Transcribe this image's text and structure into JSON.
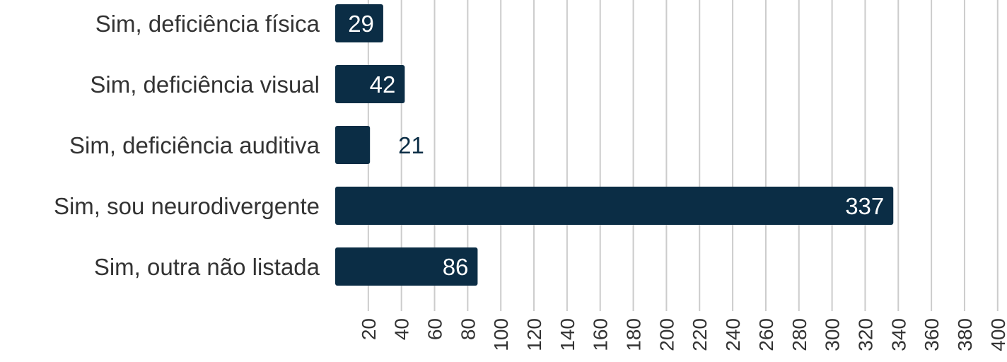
{
  "chart_data": {
    "type": "bar",
    "orientation": "horizontal",
    "categories": [
      "Sim, deficiência física",
      "Sim, deficiência visual",
      "Sim, deficiência auditiva",
      "Sim, sou neurodivergente",
      "Sim, outra não listada"
    ],
    "values": [
      29,
      42,
      21,
      337,
      86
    ],
    "xlim": [
      0,
      400
    ],
    "x_ticks": [
      20,
      40,
      60,
      80,
      100,
      120,
      140,
      160,
      180,
      200,
      220,
      240,
      260,
      280,
      300,
      320,
      340,
      360,
      380,
      400
    ],
    "grid": true,
    "title": "",
    "xlabel": "",
    "ylabel": "",
    "colors": {
      "bar": "#0b2d45",
      "label_inside": "#ffffff",
      "label_outside": "#0b2d45",
      "grid": "#cccccc"
    }
  }
}
